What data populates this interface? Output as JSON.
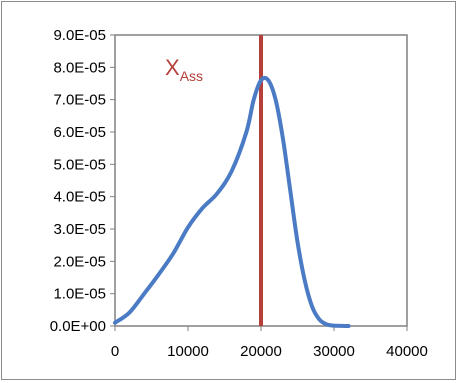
{
  "chart_data": {
    "type": "line",
    "title": "",
    "xlabel": "",
    "ylabel": "",
    "xlim": [
      0,
      40000
    ],
    "ylim": [
      0,
      9e-05
    ],
    "x_ticks": [
      "0",
      "10000",
      "20000",
      "30000",
      "40000"
    ],
    "y_ticks": [
      "0.0E+00",
      "1.0E-05",
      "2.0E-05",
      "3.0E-05",
      "4.0E-05",
      "5.0E-05",
      "6.0E-05",
      "7.0E-05",
      "8.0E-05",
      "9.0E-05"
    ],
    "grid": false,
    "legend": "none",
    "series": [
      {
        "color": "#4a7bc4",
        "points": [
          [
            0,
            1e-06
          ],
          [
            2000,
            4.2e-06
          ],
          [
            4000,
            1e-05
          ],
          [
            6000,
            1.6e-05
          ],
          [
            8000,
            2.25e-05
          ],
          [
            10000,
            3.05e-05
          ],
          [
            12000,
            3.65e-05
          ],
          [
            14000,
            4.1e-05
          ],
          [
            16000,
            4.8e-05
          ],
          [
            18000,
            6e-05
          ],
          [
            19000,
            7e-05
          ],
          [
            20000,
            7.6e-05
          ],
          [
            21000,
            7.6e-05
          ],
          [
            22000,
            7e-05
          ],
          [
            23000,
            5.8e-05
          ],
          [
            24000,
            4.2e-05
          ],
          [
            25000,
            2.6e-05
          ],
          [
            26000,
            1.4e-05
          ],
          [
            27000,
            6e-06
          ],
          [
            28000,
            2e-06
          ],
          [
            29000,
            5e-07
          ],
          [
            30000,
            1e-07
          ],
          [
            32000,
            0.0
          ]
        ]
      }
    ],
    "annotation": {
      "label_main": "X",
      "label_sub": "Ass",
      "x": 20000,
      "color": "#b5403a"
    },
    "axis_color": "#808080"
  }
}
